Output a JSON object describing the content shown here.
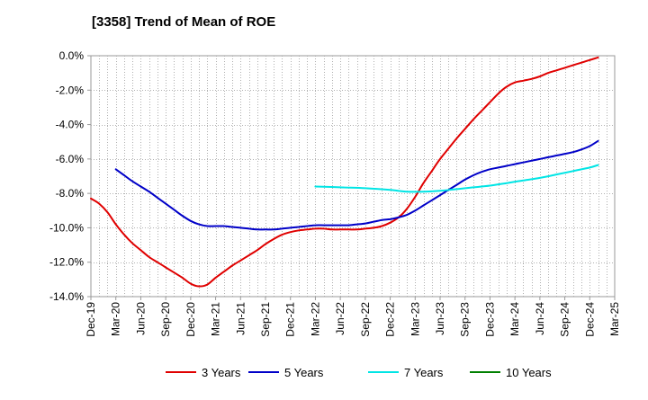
{
  "chart_data": {
    "type": "line",
    "title": "[3358]  Trend of Mean of ROE",
    "xlabel": "",
    "ylabel": "",
    "x_tick_labels": [
      "Dec-19",
      "Mar-20",
      "Jun-20",
      "Sep-20",
      "Dec-20",
      "Mar-21",
      "Jun-21",
      "Sep-21",
      "Dec-21",
      "Mar-22",
      "Jun-22",
      "Sep-22",
      "Dec-22",
      "Mar-23",
      "Jun-23",
      "Sep-23",
      "Dec-23",
      "Mar-24",
      "Jun-24",
      "Sep-24",
      "Dec-24",
      "Mar-25"
    ],
    "y_tick_labels": [
      "0.0%",
      "-2.0%",
      "-4.0%",
      "-6.0%",
      "-8.0%",
      "-10.0%",
      "-12.0%",
      "-14.0%"
    ],
    "ylim": [
      -14.0,
      0.0
    ],
    "y_ticks": [
      0,
      -2,
      -4,
      -6,
      -8,
      -10,
      -12,
      -14
    ],
    "x_unit": "months since Dec-19",
    "grid": true,
    "legend_position": "bottom",
    "series": [
      {
        "name": "3 Years",
        "color": "#e00000",
        "points": [
          [
            0,
            -8.3
          ],
          [
            1,
            -8.6
          ],
          [
            2,
            -9.1
          ],
          [
            3,
            -9.8
          ],
          [
            4,
            -10.4
          ],
          [
            5,
            -10.9
          ],
          [
            6,
            -11.3
          ],
          [
            7,
            -11.7
          ],
          [
            8,
            -12.0
          ],
          [
            9,
            -12.3
          ],
          [
            10,
            -12.6
          ],
          [
            11,
            -12.9
          ],
          [
            12,
            -13.25
          ],
          [
            13,
            -13.4
          ],
          [
            14,
            -13.3
          ],
          [
            15,
            -12.9
          ],
          [
            16,
            -12.55
          ],
          [
            17,
            -12.2
          ],
          [
            18,
            -11.9
          ],
          [
            19,
            -11.6
          ],
          [
            20,
            -11.3
          ],
          [
            21,
            -10.95
          ],
          [
            22,
            -10.65
          ],
          [
            23,
            -10.4
          ],
          [
            24,
            -10.25
          ],
          [
            25,
            -10.15
          ],
          [
            26,
            -10.1
          ],
          [
            27,
            -10.05
          ],
          [
            28,
            -10.05
          ],
          [
            29,
            -10.1
          ],
          [
            30,
            -10.1
          ],
          [
            31,
            -10.1
          ],
          [
            32,
            -10.1
          ],
          [
            33,
            -10.05
          ],
          [
            34,
            -10.0
          ],
          [
            35,
            -9.9
          ],
          [
            36,
            -9.7
          ],
          [
            37,
            -9.4
          ],
          [
            38,
            -8.9
          ],
          [
            39,
            -8.2
          ],
          [
            40,
            -7.4
          ],
          [
            41,
            -6.7
          ],
          [
            42,
            -6.0
          ],
          [
            43,
            -5.4
          ],
          [
            44,
            -4.8
          ],
          [
            45,
            -4.25
          ],
          [
            46,
            -3.7
          ],
          [
            47,
            -3.2
          ],
          [
            48,
            -2.7
          ],
          [
            49,
            -2.2
          ],
          [
            50,
            -1.8
          ],
          [
            51,
            -1.55
          ],
          [
            52,
            -1.45
          ],
          [
            53,
            -1.35
          ],
          [
            54,
            -1.2
          ],
          [
            55,
            -1.0
          ],
          [
            56,
            -0.85
          ],
          [
            57,
            -0.7
          ],
          [
            58,
            -0.55
          ],
          [
            59,
            -0.4
          ],
          [
            60,
            -0.25
          ],
          [
            61,
            -0.1
          ]
        ]
      },
      {
        "name": "5 Years",
        "color": "#0000c8",
        "points": [
          [
            3,
            -6.6
          ],
          [
            4,
            -6.95
          ],
          [
            5,
            -7.3
          ],
          [
            6,
            -7.6
          ],
          [
            7,
            -7.9
          ],
          [
            8,
            -8.25
          ],
          [
            9,
            -8.6
          ],
          [
            10,
            -8.95
          ],
          [
            11,
            -9.3
          ],
          [
            12,
            -9.6
          ],
          [
            13,
            -9.8
          ],
          [
            14,
            -9.9
          ],
          [
            15,
            -9.9
          ],
          [
            16,
            -9.9
          ],
          [
            17,
            -9.95
          ],
          [
            18,
            -10.0
          ],
          [
            19,
            -10.05
          ],
          [
            20,
            -10.1
          ],
          [
            21,
            -10.1
          ],
          [
            22,
            -10.1
          ],
          [
            23,
            -10.05
          ],
          [
            24,
            -10.0
          ],
          [
            25,
            -9.95
          ],
          [
            26,
            -9.9
          ],
          [
            27,
            -9.85
          ],
          [
            28,
            -9.85
          ],
          [
            29,
            -9.85
          ],
          [
            30,
            -9.85
          ],
          [
            31,
            -9.85
          ],
          [
            32,
            -9.8
          ],
          [
            33,
            -9.75
          ],
          [
            34,
            -9.65
          ],
          [
            35,
            -9.55
          ],
          [
            36,
            -9.5
          ],
          [
            37,
            -9.4
          ],
          [
            38,
            -9.25
          ],
          [
            39,
            -9.0
          ],
          [
            40,
            -8.7
          ],
          [
            41,
            -8.4
          ],
          [
            42,
            -8.1
          ],
          [
            43,
            -7.8
          ],
          [
            44,
            -7.5
          ],
          [
            45,
            -7.2
          ],
          [
            46,
            -6.95
          ],
          [
            47,
            -6.75
          ],
          [
            48,
            -6.6
          ],
          [
            49,
            -6.5
          ],
          [
            50,
            -6.4
          ],
          [
            51,
            -6.3
          ],
          [
            52,
            -6.2
          ],
          [
            53,
            -6.1
          ],
          [
            54,
            -6.0
          ],
          [
            55,
            -5.9
          ],
          [
            56,
            -5.8
          ],
          [
            57,
            -5.7
          ],
          [
            58,
            -5.6
          ],
          [
            59,
            -5.45
          ],
          [
            60,
            -5.25
          ],
          [
            61,
            -4.95
          ]
        ]
      },
      {
        "name": "7 Years",
        "color": "#00e5e5",
        "points": [
          [
            27,
            -7.6
          ],
          [
            30,
            -7.65
          ],
          [
            33,
            -7.7
          ],
          [
            36,
            -7.8
          ],
          [
            38,
            -7.9
          ],
          [
            40,
            -7.9
          ],
          [
            42,
            -7.85
          ],
          [
            44,
            -7.75
          ],
          [
            46,
            -7.65
          ],
          [
            48,
            -7.55
          ],
          [
            50,
            -7.4
          ],
          [
            52,
            -7.25
          ],
          [
            54,
            -7.1
          ],
          [
            56,
            -6.9
          ],
          [
            58,
            -6.7
          ],
          [
            60,
            -6.5
          ],
          [
            61,
            -6.35
          ]
        ]
      },
      {
        "name": "10 Years",
        "color": "#008000",
        "points": []
      }
    ]
  }
}
